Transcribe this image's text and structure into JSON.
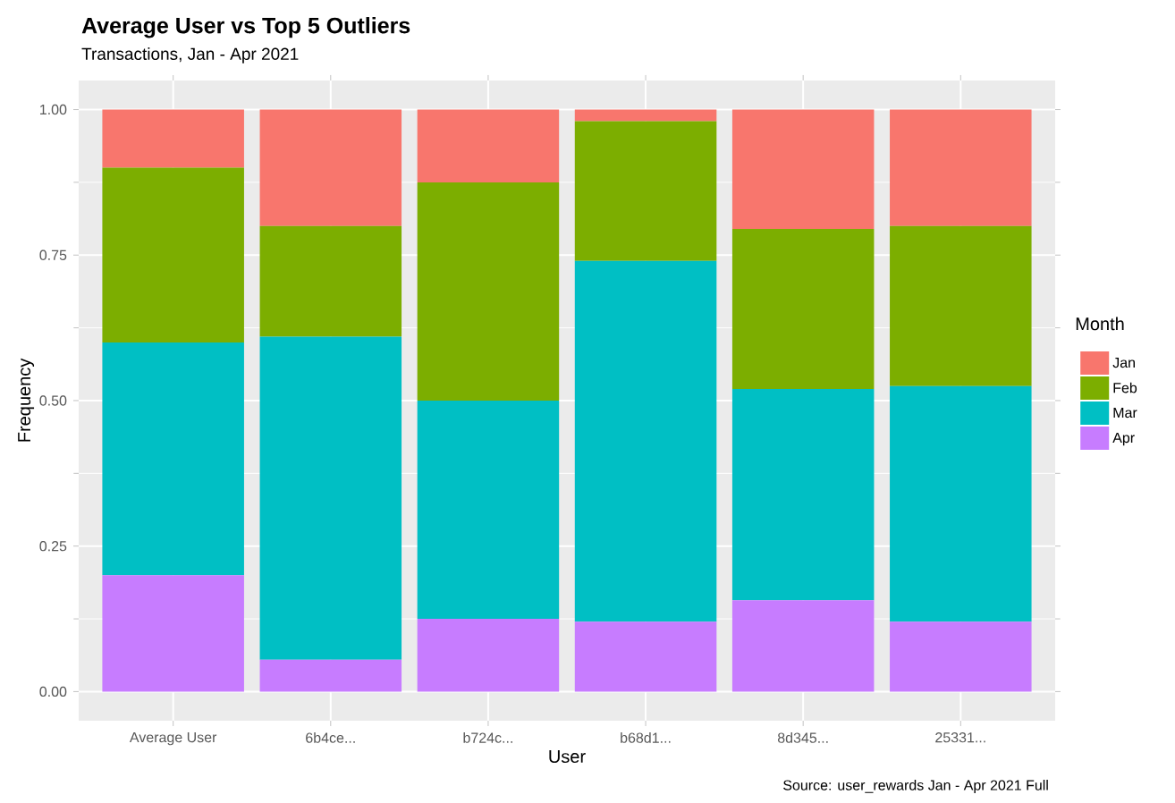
{
  "chart_data": {
    "type": "bar",
    "stacked": true,
    "title": "Average User vs Top 5 Outliers",
    "subtitle": "Transactions, Jan - Apr 2021",
    "xlabel": "User",
    "ylabel": "Frequency",
    "legend_title": "Month",
    "annotations": [
      "Source: user_rewards Jan - Apr 2021 Full"
    ],
    "categories": [
      "Average User",
      "6b4ce...",
      "b724c...",
      "b68d1...",
      "8d345...",
      "25331..."
    ],
    "series": [
      {
        "name": "Apr",
        "color": "#c77cff",
        "values": [
          0.2,
          0.055,
          0.125,
          0.12,
          0.157,
          0.12
        ]
      },
      {
        "name": "Mar",
        "color": "#00bfc4",
        "values": [
          0.4,
          0.555,
          0.375,
          0.62,
          0.363,
          0.405
        ]
      },
      {
        "name": "Feb",
        "color": "#7cae00",
        "values": [
          0.3,
          0.19,
          0.375,
          0.24,
          0.275,
          0.275
        ]
      },
      {
        "name": "Jan",
        "color": "#f8766d",
        "values": [
          0.1,
          0.2,
          0.125,
          0.02,
          0.205,
          0.2
        ]
      }
    ],
    "ylim": [
      -0.05,
      1.05
    ],
    "yticks": [
      {
        "value": 0,
        "label": "0.00"
      },
      {
        "value": 0.25,
        "label": "0.25"
      },
      {
        "value": 0.5,
        "label": "0.50"
      },
      {
        "value": 0.75,
        "label": "0.75"
      },
      {
        "value": 1,
        "label": "1.00"
      }
    ],
    "grid": true,
    "legend": "right"
  }
}
